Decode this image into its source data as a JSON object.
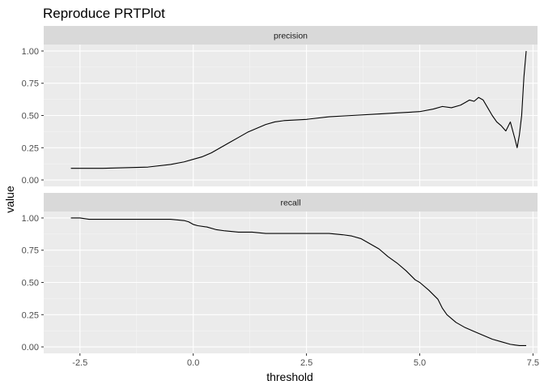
{
  "chart_data": {
    "type": "line",
    "title": "Reproduce PRTPlot",
    "xlabel": "threshold",
    "ylabel": "value",
    "xlim": [
      -3.3,
      7.6
    ],
    "ylim": [
      -0.05,
      1.05
    ],
    "x_ticks": [
      -2.5,
      0.0,
      2.5,
      5.0,
      7.5
    ],
    "x_tick_labels": [
      "-2.5",
      "0.0",
      "2.5",
      "5.0",
      "7.5"
    ],
    "y_ticks": [
      0.0,
      0.25,
      0.5,
      0.75,
      1.0
    ],
    "y_tick_labels": [
      "0.00",
      "0.25",
      "0.50",
      "0.75",
      "1.00"
    ],
    "grid": true,
    "facets": [
      {
        "strip": "precision",
        "x": [
          -2.7,
          -2.0,
          -1.5,
          -1.0,
          -0.5,
          -0.2,
          0.0,
          0.2,
          0.4,
          0.6,
          0.8,
          1.0,
          1.2,
          1.4,
          1.6,
          1.8,
          2.0,
          2.5,
          3.0,
          3.5,
          4.0,
          4.5,
          5.0,
          5.3,
          5.5,
          5.7,
          5.9,
          6.0,
          6.1,
          6.2,
          6.3,
          6.4,
          6.5,
          6.6,
          6.7,
          6.8,
          6.9,
          7.0,
          7.1,
          7.15,
          7.2,
          7.25,
          7.3,
          7.35
        ],
        "y": [
          0.09,
          0.09,
          0.095,
          0.1,
          0.12,
          0.14,
          0.16,
          0.18,
          0.21,
          0.25,
          0.29,
          0.33,
          0.37,
          0.4,
          0.43,
          0.45,
          0.46,
          0.47,
          0.49,
          0.5,
          0.51,
          0.52,
          0.53,
          0.55,
          0.57,
          0.56,
          0.58,
          0.6,
          0.62,
          0.61,
          0.64,
          0.62,
          0.56,
          0.5,
          0.45,
          0.42,
          0.38,
          0.45,
          0.32,
          0.25,
          0.35,
          0.5,
          0.8,
          1.0
        ]
      },
      {
        "strip": "recall",
        "x": [
          -2.7,
          -2.5,
          -2.3,
          -1.5,
          -0.5,
          -0.2,
          -0.1,
          0.0,
          0.1,
          0.3,
          0.5,
          0.7,
          1.0,
          1.3,
          1.6,
          2.0,
          2.5,
          3.0,
          3.3,
          3.5,
          3.7,
          3.9,
          4.1,
          4.3,
          4.5,
          4.7,
          4.9,
          5.0,
          5.2,
          5.4,
          5.5,
          5.6,
          5.8,
          6.0,
          6.2,
          6.4,
          6.6,
          6.8,
          7.0,
          7.2,
          7.35
        ],
        "y": [
          1.0,
          1.0,
          0.99,
          0.99,
          0.99,
          0.98,
          0.97,
          0.95,
          0.94,
          0.93,
          0.91,
          0.9,
          0.89,
          0.89,
          0.88,
          0.88,
          0.88,
          0.88,
          0.87,
          0.86,
          0.84,
          0.8,
          0.76,
          0.7,
          0.65,
          0.59,
          0.52,
          0.5,
          0.44,
          0.37,
          0.3,
          0.25,
          0.19,
          0.15,
          0.12,
          0.09,
          0.06,
          0.04,
          0.02,
          0.01,
          0.01
        ]
      }
    ]
  }
}
